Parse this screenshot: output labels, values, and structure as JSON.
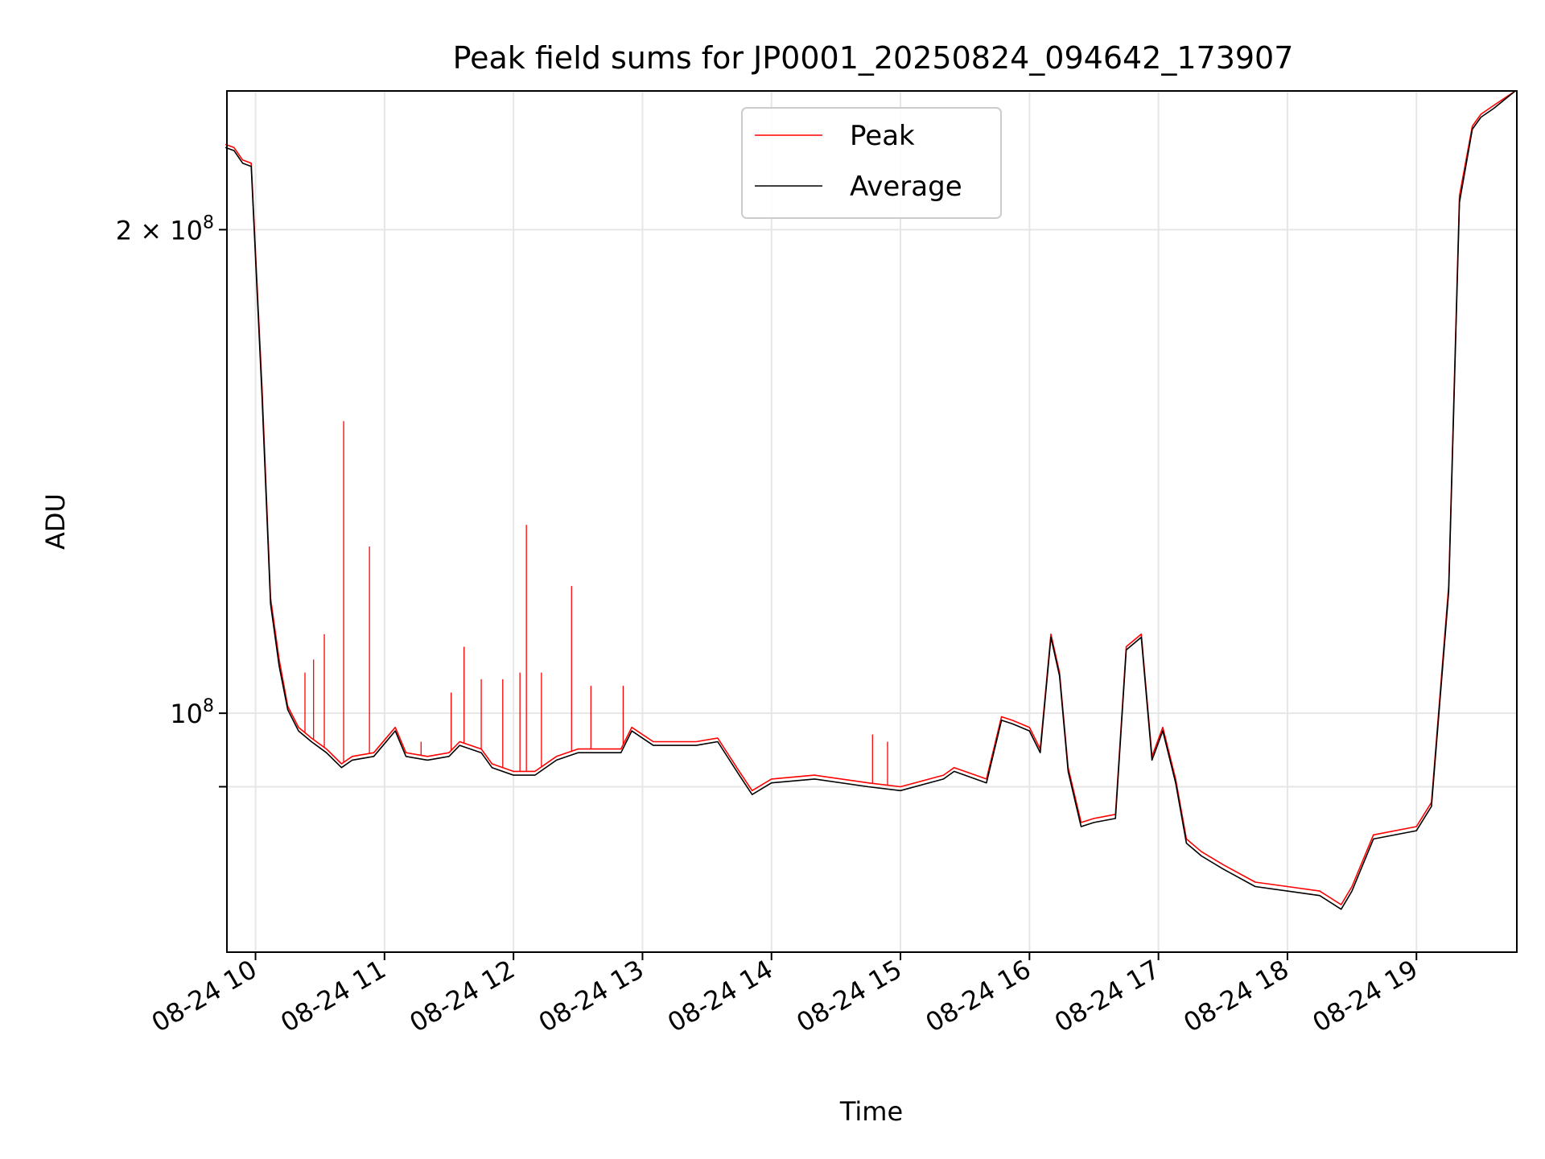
{
  "chart_data": {
    "type": "line",
    "title": "Peak field sums for JP0001_20250824_094642_173907",
    "xlabel": "Time",
    "ylabel": "ADU",
    "xlim": [
      "2025-08-24 09:46:42",
      "2025-08-24 19:46:42"
    ],
    "ylim": [
      71000000,
      244000000
    ],
    "yscale": "log",
    "x_tick_labels": [
      "08-24 10",
      "08-24 11",
      "08-24 12",
      "08-24 13",
      "08-24 14",
      "08-24 15",
      "08-24 16",
      "08-24 17",
      "08-24 18",
      "08-24 19"
    ],
    "x_ticks": [
      "2025-08-24 10:00",
      "2025-08-24 11:00",
      "2025-08-24 12:00",
      "2025-08-24 13:00",
      "2025-08-24 14:00",
      "2025-08-24 15:00",
      "2025-08-24 16:00",
      "2025-08-24 17:00",
      "2025-08-24 18:00",
      "2025-08-24 19:00"
    ],
    "y_ticks": [
      {
        "value": 200000000,
        "label_base": "2 × 10",
        "label_exp": "8"
      },
      {
        "value": 100000000,
        "label_base": "10",
        "label_exp": "8"
      },
      {
        "value": 90000000,
        "label_base": "",
        "label_exp": ""
      }
    ],
    "grid": true,
    "legend_position": "top-center",
    "series": [
      {
        "name": "Peak",
        "color": "#ff0000",
        "x": [
          "2025-08-24 09:46",
          "2025-08-24 09:50",
          "2025-08-24 09:54",
          "2025-08-24 09:58",
          "2025-08-24 10:03",
          "2025-08-24 10:07",
          "2025-08-24 10:11",
          "2025-08-24 10:15",
          "2025-08-24 10:20",
          "2025-08-24 10:26",
          "2025-08-24 10:33",
          "2025-08-24 10:40",
          "2025-08-24 10:45",
          "2025-08-24 10:55",
          "2025-08-24 11:05",
          "2025-08-24 11:10",
          "2025-08-24 11:20",
          "2025-08-24 11:30",
          "2025-08-24 11:35",
          "2025-08-24 11:45",
          "2025-08-24 11:50",
          "2025-08-24 12:00",
          "2025-08-24 12:10",
          "2025-08-24 12:20",
          "2025-08-24 12:30",
          "2025-08-24 12:40",
          "2025-08-24 12:50",
          "2025-08-24 12:55",
          "2025-08-24 13:05",
          "2025-08-24 13:25",
          "2025-08-24 13:35",
          "2025-08-24 13:45",
          "2025-08-24 13:51",
          "2025-08-24 14:00",
          "2025-08-24 14:20",
          "2025-08-24 14:45",
          "2025-08-24 15:00",
          "2025-08-24 15:20",
          "2025-08-24 15:25",
          "2025-08-24 15:40",
          "2025-08-24 15:47",
          "2025-08-24 15:52",
          "2025-08-24 16:00",
          "2025-08-24 16:05",
          "2025-08-24 16:10",
          "2025-08-24 16:14",
          "2025-08-24 16:18",
          "2025-08-24 16:24",
          "2025-08-24 16:30",
          "2025-08-24 16:40",
          "2025-08-24 16:45",
          "2025-08-24 16:52",
          "2025-08-24 16:57",
          "2025-08-24 17:02",
          "2025-08-24 17:08",
          "2025-08-24 17:13",
          "2025-08-24 17:20",
          "2025-08-24 17:30",
          "2025-08-24 17:45",
          "2025-08-24 18:00",
          "2025-08-24 18:15",
          "2025-08-24 18:25",
          "2025-08-24 18:30",
          "2025-08-24 18:40",
          "2025-08-24 19:00",
          "2025-08-24 19:07",
          "2025-08-24 19:15",
          "2025-08-24 19:20",
          "2025-08-24 19:26",
          "2025-08-24 19:30",
          "2025-08-24 19:36",
          "2025-08-24 19:46"
        ],
        "values": [
          226000000,
          225000000,
          221000000,
          220000000,
          160000000,
          118000000,
          108000000,
          101000000,
          98000000,
          96500000,
          95000000,
          93000000,
          94000000,
          94500000,
          98000000,
          94500000,
          94000000,
          94500000,
          96000000,
          95000000,
          93000000,
          92000000,
          92000000,
          94000000,
          95000000,
          95000000,
          95000000,
          98000000,
          96000000,
          96000000,
          96500000,
          92000000,
          89500000,
          91000000,
          91500000,
          90500000,
          90000000,
          91500000,
          92500000,
          91000000,
          99500000,
          99000000,
          98000000,
          95000000,
          112000000,
          106000000,
          92500000,
          85500000,
          86000000,
          86500000,
          110000000,
          112000000,
          94000000,
          98000000,
          91000000,
          83500000,
          82000000,
          80500000,
          78500000,
          78000000,
          77500000,
          76000000,
          78000000,
          84000000,
          85000000,
          88000000,
          120000000,
          210000000,
          232000000,
          236000000,
          239000000,
          244000000
        ]
      },
      {
        "name": "Average",
        "color": "#000000",
        "x": [
          "2025-08-24 09:46",
          "2025-08-24 09:50",
          "2025-08-24 09:54",
          "2025-08-24 09:58",
          "2025-08-24 10:03",
          "2025-08-24 10:07",
          "2025-08-24 10:11",
          "2025-08-24 10:15",
          "2025-08-24 10:20",
          "2025-08-24 10:26",
          "2025-08-24 10:33",
          "2025-08-24 10:40",
          "2025-08-24 10:45",
          "2025-08-24 10:55",
          "2025-08-24 11:05",
          "2025-08-24 11:10",
          "2025-08-24 11:20",
          "2025-08-24 11:30",
          "2025-08-24 11:35",
          "2025-08-24 11:45",
          "2025-08-24 11:50",
          "2025-08-24 12:00",
          "2025-08-24 12:10",
          "2025-08-24 12:20",
          "2025-08-24 12:30",
          "2025-08-24 12:40",
          "2025-08-24 12:50",
          "2025-08-24 12:55",
          "2025-08-24 13:05",
          "2025-08-24 13:25",
          "2025-08-24 13:35",
          "2025-08-24 13:45",
          "2025-08-24 13:51",
          "2025-08-24 14:00",
          "2025-08-24 14:20",
          "2025-08-24 14:45",
          "2025-08-24 15:00",
          "2025-08-24 15:20",
          "2025-08-24 15:25",
          "2025-08-24 15:40",
          "2025-08-24 15:47",
          "2025-08-24 15:52",
          "2025-08-24 16:00",
          "2025-08-24 16:05",
          "2025-08-24 16:10",
          "2025-08-24 16:14",
          "2025-08-24 16:18",
          "2025-08-24 16:24",
          "2025-08-24 16:30",
          "2025-08-24 16:40",
          "2025-08-24 16:45",
          "2025-08-24 16:52",
          "2025-08-24 16:57",
          "2025-08-24 17:02",
          "2025-08-24 17:08",
          "2025-08-24 17:13",
          "2025-08-24 17:20",
          "2025-08-24 17:30",
          "2025-08-24 17:45",
          "2025-08-24 18:00",
          "2025-08-24 18:15",
          "2025-08-24 18:25",
          "2025-08-24 18:30",
          "2025-08-24 18:40",
          "2025-08-24 19:00",
          "2025-08-24 19:07",
          "2025-08-24 19:15",
          "2025-08-24 19:20",
          "2025-08-24 19:26",
          "2025-08-24 19:30",
          "2025-08-24 19:36",
          "2025-08-24 19:46"
        ],
        "values": [
          225000000,
          224000000,
          220000000,
          219000000,
          158000000,
          117000000,
          107000000,
          100500000,
          97500000,
          96000000,
          94500000,
          92500000,
          93500000,
          94000000,
          97500000,
          94000000,
          93500000,
          94000000,
          95500000,
          94500000,
          92500000,
          91500000,
          91500000,
          93500000,
          94500000,
          94500000,
          94500000,
          97500000,
          95500000,
          95500000,
          96000000,
          91500000,
          89000000,
          90500000,
          91000000,
          90000000,
          89500000,
          91000000,
          92000000,
          90500000,
          99000000,
          98500000,
          97500000,
          94500000,
          111500000,
          105500000,
          92000000,
          85000000,
          85500000,
          86000000,
          109500000,
          111500000,
          93500000,
          97500000,
          90500000,
          83000000,
          81500000,
          80000000,
          78000000,
          77500000,
          77000000,
          75500000,
          77500000,
          83500000,
          84500000,
          87500000,
          119000000,
          208000000,
          231000000,
          235000000,
          238000000,
          244000000
        ]
      }
    ],
    "peak_spikes": {
      "x": [
        "2025-08-24 10:23",
        "2025-08-24 10:27",
        "2025-08-24 10:32",
        "2025-08-24 10:41",
        "2025-08-24 10:53",
        "2025-08-24 11:17",
        "2025-08-24 11:31",
        "2025-08-24 11:37",
        "2025-08-24 11:45",
        "2025-08-24 11:55",
        "2025-08-24 12:03",
        "2025-08-24 12:06",
        "2025-08-24 12:13",
        "2025-08-24 12:27",
        "2025-08-24 12:36",
        "2025-08-24 12:51",
        "2025-08-24 14:47",
        "2025-08-24 14:54"
      ],
      "values": [
        106000000,
        108000000,
        112000000,
        152000000,
        127000000,
        96000000,
        103000000,
        110000000,
        105000000,
        105000000,
        106000000,
        131000000,
        106000000,
        120000000,
        104000000,
        104000000,
        97000000,
        96000000
      ]
    },
    "legend": [
      "Peak",
      "Average"
    ]
  }
}
